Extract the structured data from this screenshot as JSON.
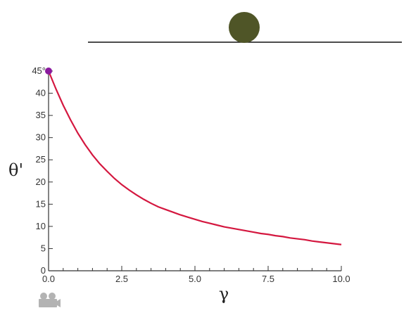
{
  "colors": {
    "curve": "#d4173f",
    "start_marker": "#8a1a9e",
    "ball": "#4f5527",
    "track": "#111111",
    "axis": "#333333",
    "camera_icon": "#b3b3b3"
  },
  "scene": {
    "ball_shape": "circle",
    "track_shape": "horizontal line",
    "camera_icon_name": "camera-icon"
  },
  "chart_data": {
    "type": "line",
    "title": "",
    "xlabel": "γ",
    "ylabel": "θ'",
    "xlim": [
      0,
      10
    ],
    "ylim": [
      0,
      45
    ],
    "x_ticks": [
      {
        "value": 0,
        "label": "0.0"
      },
      {
        "value": 2.5,
        "label": "2.5"
      },
      {
        "value": 5,
        "label": "5.0"
      },
      {
        "value": 7.5,
        "label": "7.5"
      },
      {
        "value": 10,
        "label": "10.0"
      }
    ],
    "x_minor_step": 0.5,
    "y_ticks": [
      {
        "value": 0,
        "label": "0"
      },
      {
        "value": 5,
        "label": "5"
      },
      {
        "value": 10,
        "label": "10"
      },
      {
        "value": 15,
        "label": "15"
      },
      {
        "value": 20,
        "label": "20"
      },
      {
        "value": 25,
        "label": "25"
      },
      {
        "value": 30,
        "label": "30"
      },
      {
        "value": 35,
        "label": "35"
      },
      {
        "value": 40,
        "label": "40"
      },
      {
        "value": 45,
        "label": "45°"
      }
    ],
    "grid": false,
    "start_point": {
      "x": 0,
      "y": 45
    },
    "series": [
      {
        "x": [
          0,
          0.25,
          0.5,
          0.75,
          1,
          1.25,
          1.5,
          1.75,
          2,
          2.25,
          2.5,
          2.75,
          3,
          3.25,
          3.5,
          3.75,
          4,
          4.25,
          4.5,
          4.75,
          5,
          5.25,
          5.5,
          5.75,
          6,
          6.25,
          6.5,
          6.75,
          7,
          7.25,
          7.5,
          7.75,
          8,
          8.25,
          8.5,
          8.75,
          9,
          9.25,
          9.5,
          9.75,
          10
        ],
        "y": [
          45,
          41.0,
          37.3,
          34.0,
          31.0,
          28.4,
          26.1,
          24.1,
          22.4,
          20.8,
          19.4,
          18.2,
          17.1,
          16.1,
          15.2,
          14.4,
          13.8,
          13.2,
          12.6,
          12.1,
          11.6,
          11.1,
          10.7,
          10.3,
          9.9,
          9.6,
          9.3,
          9.0,
          8.7,
          8.4,
          8.2,
          7.9,
          7.7,
          7.4,
          7.2,
          7.0,
          6.7,
          6.5,
          6.3,
          6.1,
          5.9
        ]
      }
    ]
  }
}
